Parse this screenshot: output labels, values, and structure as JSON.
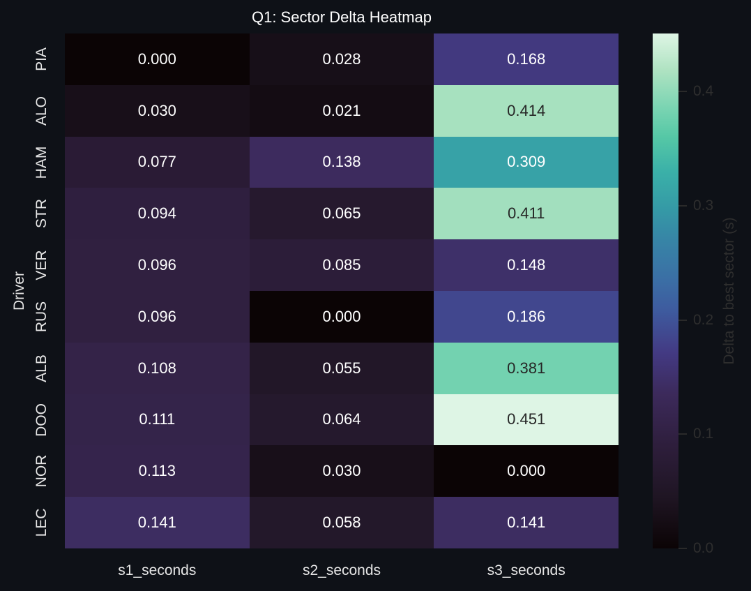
{
  "chart_data": {
    "type": "heatmap",
    "title": "Q1: Sector Delta Heatmap",
    "xlabel": "",
    "ylabel": "Driver",
    "x_categories": [
      "s1_seconds",
      "s2_seconds",
      "s3_seconds"
    ],
    "y_categories": [
      "PIA",
      "ALO",
      "HAM",
      "STR",
      "VER",
      "RUS",
      "ALB",
      "DOO",
      "NOR",
      "LEC"
    ],
    "values": [
      [
        0.0,
        0.028,
        0.168
      ],
      [
        0.03,
        0.021,
        0.414
      ],
      [
        0.077,
        0.138,
        0.309
      ],
      [
        0.094,
        0.065,
        0.411
      ],
      [
        0.096,
        0.085,
        0.148
      ],
      [
        0.096,
        0.0,
        0.186
      ],
      [
        0.108,
        0.055,
        0.381
      ],
      [
        0.111,
        0.064,
        0.451
      ],
      [
        0.113,
        0.03,
        0.0
      ],
      [
        0.141,
        0.058,
        0.141
      ]
    ],
    "value_format": "0.000",
    "colorbar": {
      "label": "Delta to best sector (s)",
      "ticks": [
        "0.0",
        "0.1",
        "0.2",
        "0.3",
        "0.4"
      ],
      "range": [
        0.0,
        0.451
      ],
      "colormap": "mako"
    },
    "grid": false
  },
  "colors": {
    "background": "#0e1117",
    "text": "#e6e6e6"
  }
}
